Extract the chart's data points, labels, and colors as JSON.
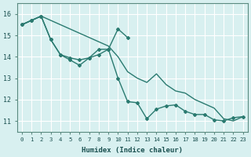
{
  "xlabel": "Humidex (Indice chaleur)",
  "bg_color": "#d8f0f0",
  "grid_color": "#ffffff",
  "line_color": "#2a7a70",
  "xlim": [
    -0.5,
    23.5
  ],
  "ylim": [
    10.5,
    16.5
  ],
  "xticks": [
    0,
    1,
    2,
    3,
    4,
    5,
    6,
    7,
    8,
    9,
    10,
    11,
    12,
    13,
    14,
    15,
    16,
    17,
    18,
    19,
    20,
    21,
    22,
    23
  ],
  "yticks": [
    11,
    12,
    13,
    14,
    15,
    16
  ],
  "line1_x": [
    0,
    1,
    2,
    3,
    4,
    5,
    6,
    7,
    8,
    9,
    10,
    11,
    12,
    13,
    14,
    15,
    16,
    17,
    18,
    19,
    20,
    21,
    22,
    23
  ],
  "line1_y": [
    15.5,
    15.7,
    15.9,
    15.7,
    15.5,
    15.3,
    15.1,
    14.9,
    14.7,
    14.5,
    14.0,
    13.3,
    13.0,
    12.8,
    13.2,
    12.7,
    12.4,
    12.3,
    12.0,
    11.8,
    11.6,
    11.1,
    11.0,
    11.2
  ],
  "line2_x": [
    0,
    1,
    2,
    3,
    4,
    5,
    6,
    7,
    8,
    9,
    10,
    11,
    12,
    13,
    14,
    15,
    16,
    17,
    18,
    19,
    20,
    21,
    22,
    23
  ],
  "line2_y": [
    15.5,
    15.7,
    15.9,
    14.8,
    14.1,
    13.95,
    13.85,
    13.95,
    14.1,
    14.35,
    13.0,
    11.9,
    11.85,
    11.1,
    11.55,
    11.7,
    11.75,
    11.45,
    11.3,
    11.3,
    11.05,
    11.0,
    11.15,
    11.2
  ],
  "line3_x": [
    0,
    1,
    2,
    3,
    4,
    5,
    6,
    7,
    8,
    9,
    10,
    11
  ],
  "line3_y": [
    15.5,
    15.7,
    15.9,
    14.8,
    14.1,
    13.85,
    13.6,
    13.95,
    14.35,
    14.35,
    15.3,
    14.9
  ]
}
